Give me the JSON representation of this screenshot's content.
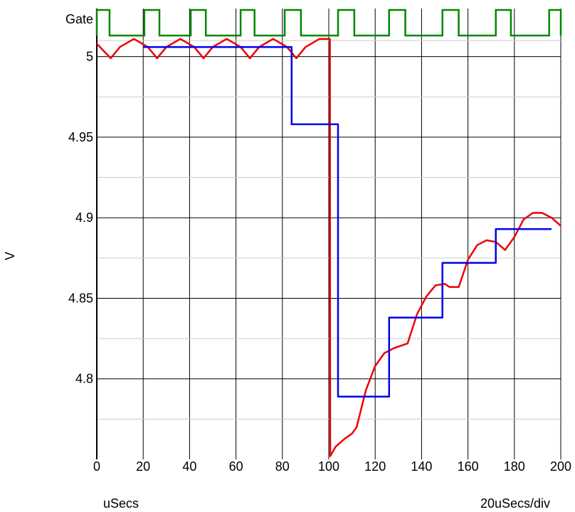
{
  "chart_data": {
    "type": "line",
    "x_unit_label": "uSecs",
    "x_scale_label": "20uSecs/div",
    "ylabel": "V",
    "gate_label": "Gate",
    "xlim": [
      0,
      200
    ],
    "ylim": [
      4.75,
      5.01
    ],
    "x_ticks": [
      0,
      20,
      40,
      60,
      80,
      100,
      120,
      140,
      160,
      180,
      200
    ],
    "y_ticks": [
      4.8,
      4.85,
      4.9,
      4.95,
      5
    ],
    "y_tick_labels": [
      "4.8",
      "4.85",
      "4.9",
      "4.95",
      "5"
    ],
    "grid": true,
    "colors": {
      "red": "#ee0000",
      "blue": "#0000ee",
      "gate": "#008800",
      "grid": "#000000"
    },
    "series": [
      {
        "x": [
          0,
          2,
          6,
          10,
          16,
          22,
          26,
          30,
          36,
          42,
          46,
          50,
          56,
          62,
          66,
          70,
          76,
          82,
          86,
          90,
          96,
          100,
          100.5,
          100.6,
          103,
          107,
          110,
          112,
          116,
          120,
          124,
          128,
          130,
          134,
          138,
          142,
          146,
          150,
          152,
          156,
          160,
          164,
          168,
          172,
          176,
          180,
          184,
          188,
          192,
          196,
          200
        ],
        "y": [
          5.008,
          5.005,
          4.999,
          5.006,
          5.011,
          5.006,
          4.999,
          5.006,
          5.011,
          5.006,
          4.999,
          5.006,
          5.011,
          5.006,
          4.999,
          5.006,
          5.011,
          5.006,
          4.999,
          5.006,
          5.011,
          5.011,
          5.011,
          4.752,
          4.758,
          4.763,
          4.766,
          4.77,
          4.793,
          4.808,
          4.816,
          4.819,
          4.82,
          4.822,
          4.84,
          4.851,
          4.858,
          4.859,
          4.857,
          4.857,
          4.874,
          4.883,
          4.886,
          4.885,
          4.88,
          4.888,
          4.899,
          4.903,
          4.903,
          4.9,
          4.895
        ]
      },
      {
        "x": [
          20,
          84,
          84,
          104,
          104,
          126,
          126,
          149,
          149,
          172,
          172,
          196
        ],
        "y": [
          5.006,
          5.006,
          4.958,
          4.958,
          4.789,
          4.789,
          4.838,
          4.838,
          4.872,
          4.872,
          4.893,
          4.893
        ]
      }
    ],
    "gate": {
      "high_intervals": [
        [
          0,
          5.5
        ],
        [
          20.5,
          27
        ],
        [
          40.5,
          47
        ],
        [
          62,
          68
        ],
        [
          81,
          88
        ],
        [
          104,
          111
        ],
        [
          126,
          133
        ],
        [
          149,
          156
        ],
        [
          172,
          178.5
        ],
        [
          195,
          200
        ]
      ]
    }
  }
}
